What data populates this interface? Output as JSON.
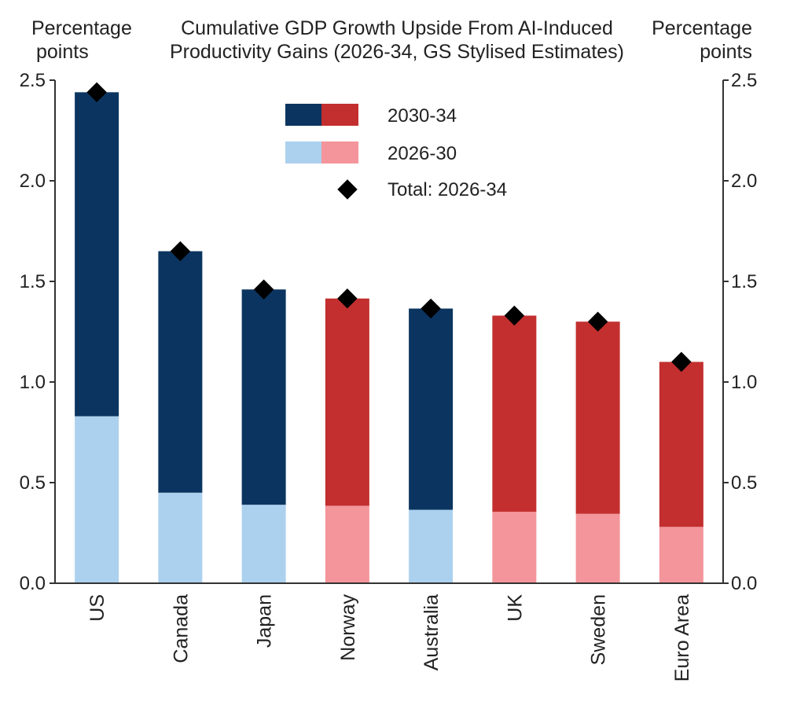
{
  "chart_data": {
    "type": "bar",
    "stacked": true,
    "title_lines": [
      "Cumulative GDP Growth Upside From AI-Induced",
      "Productivity Gains (2026-34, GS Stylised Estimates)"
    ],
    "left_unit": [
      "Percentage",
      "points"
    ],
    "right_unit": [
      "Percentage",
      "points"
    ],
    "ylim": [
      0,
      2.5
    ],
    "y_ticks": [
      "0.0",
      "0.5",
      "1.0",
      "1.5",
      "2.0",
      "2.5"
    ],
    "categories": [
      "US",
      "Canada",
      "Japan",
      "Norway",
      "Australia",
      "UK",
      "Sweden",
      "Euro Area"
    ],
    "series": [
      {
        "name": "2026-30",
        "values": [
          0.83,
          0.45,
          0.39,
          0.385,
          0.365,
          0.355,
          0.345,
          0.28
        ]
      },
      {
        "name": "2030-34",
        "values": [
          1.61,
          1.2,
          1.07,
          1.03,
          1.0,
          0.975,
          0.955,
          0.82
        ]
      }
    ],
    "totals": {
      "name": "Total: 2026-34",
      "values": [
        2.44,
        1.65,
        1.46,
        1.415,
        1.365,
        1.33,
        1.3,
        1.1
      ]
    },
    "group": [
      "blue",
      "blue",
      "blue",
      "red",
      "blue",
      "red",
      "red",
      "red"
    ],
    "colors": {
      "blue_dark": "#0b3560",
      "blue_light": "#acd1ee",
      "red_dark": "#c32f2f",
      "red_light": "#f3959a",
      "marker": "#000000"
    },
    "legend": {
      "position": "top-center",
      "items": [
        "2030-34",
        "2026-30",
        "Total: 2026-34"
      ]
    }
  }
}
